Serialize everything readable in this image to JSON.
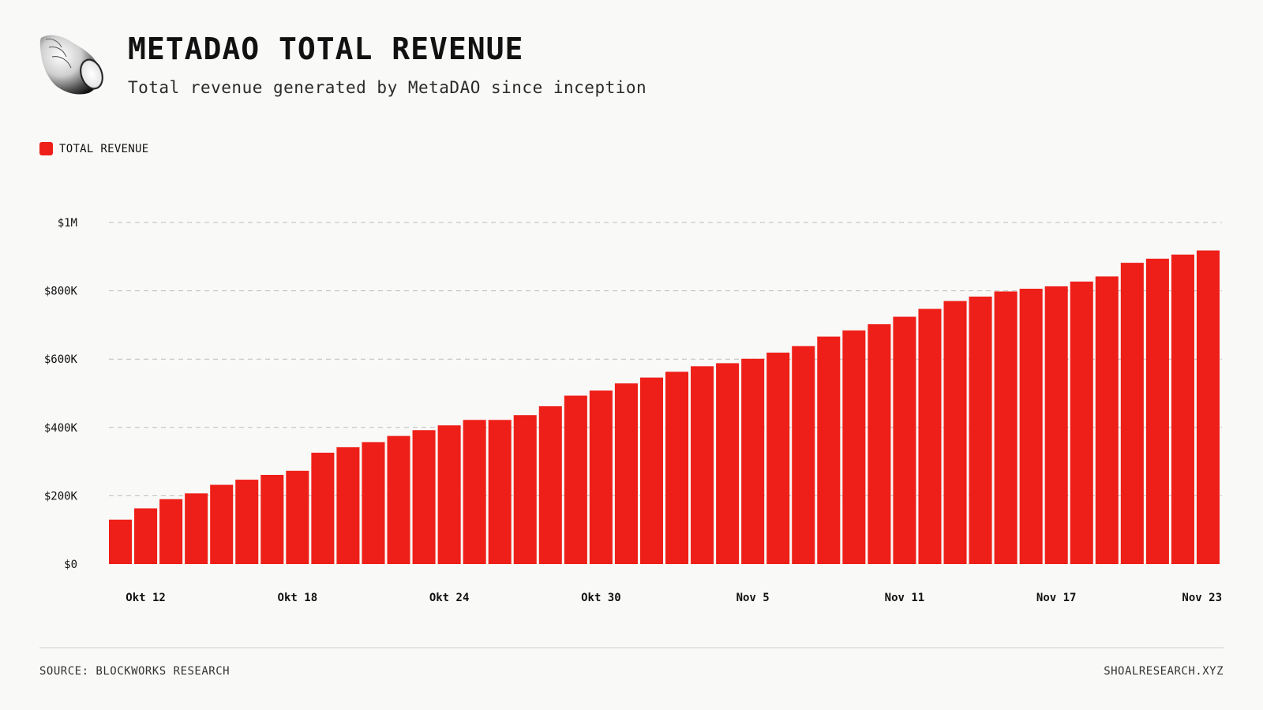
{
  "header": {
    "title": "METADAO TOTAL REVENUE",
    "subtitle": "Total revenue generated by MetaDAO since inception"
  },
  "legend": {
    "label": "TOTAL REVENUE"
  },
  "colors": {
    "bar": "#ee1f18",
    "grid": "#bdbdbd",
    "background": "#f9f9f8"
  },
  "icons": {
    "logo": "seashell-logo-icon"
  },
  "footer": {
    "source": "SOURCE: BLOCKWORKS RESEARCH",
    "site": "SHOALRESEARCH.XYZ"
  },
  "chart_data": {
    "type": "bar",
    "title": "METADAO TOTAL REVENUE",
    "subtitle": "Total revenue generated by MetaDAO since inception",
    "xlabel": "",
    "ylabel": "",
    "ylim": [
      0,
      1000000
    ],
    "grid": true,
    "legend_position": "top-left",
    "y_ticks": [
      {
        "value": 0,
        "label": "$0"
      },
      {
        "value": 200000,
        "label": "$200K"
      },
      {
        "value": 400000,
        "label": "$400K"
      },
      {
        "value": 600000,
        "label": "$600K"
      },
      {
        "value": 800000,
        "label": "$800K"
      },
      {
        "value": 1000000,
        "label": "$1M"
      }
    ],
    "x_tick_labels": [
      {
        "index": 1,
        "label": "Okt 12"
      },
      {
        "index": 7,
        "label": "Okt 18"
      },
      {
        "index": 13,
        "label": "Okt 24"
      },
      {
        "index": 19,
        "label": "Okt 30"
      },
      {
        "index": 25,
        "label": "Nov 5"
      },
      {
        "index": 31,
        "label": "Nov 11"
      },
      {
        "index": 37,
        "label": "Nov 17"
      },
      {
        "index": 43,
        "label": "Nov 23"
      }
    ],
    "series": [
      {
        "name": "TOTAL REVENUE",
        "color": "#ee1f18",
        "values": [
          130000,
          163000,
          190000,
          207000,
          232000,
          247000,
          261000,
          273000,
          326000,
          342000,
          357000,
          375000,
          392000,
          406000,
          422000,
          422000,
          436000,
          462000,
          493000,
          508000,
          529000,
          546000,
          563000,
          579000,
          588000,
          601000,
          619000,
          638000,
          666000,
          684000,
          702000,
          724000,
          747000,
          770000,
          783000,
          798000,
          806000,
          813000,
          827000,
          842000,
          882000,
          894000,
          906000,
          918000
        ]
      }
    ]
  }
}
